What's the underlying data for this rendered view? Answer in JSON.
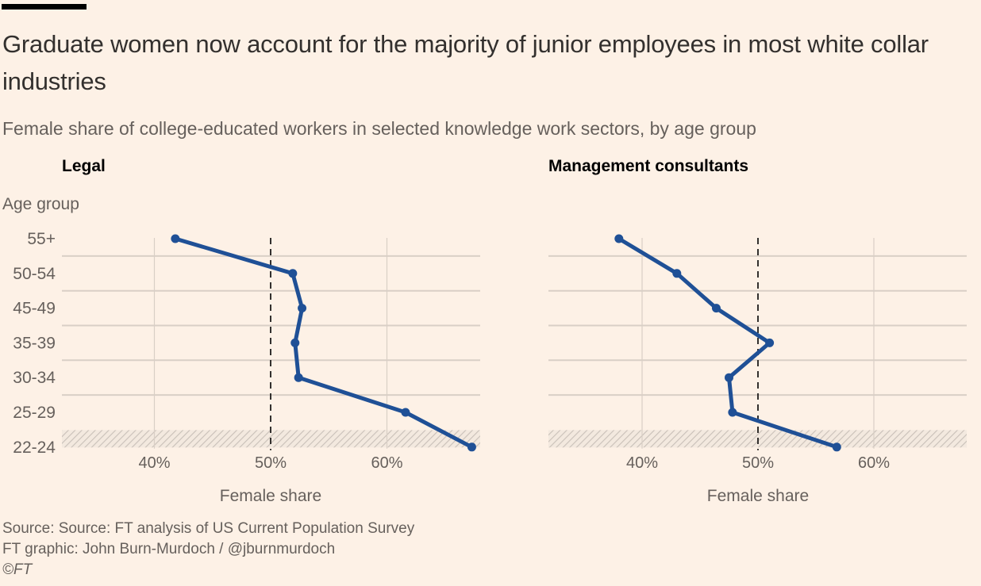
{
  "header": {
    "title": "Graduate women now account for the majority of junior employees in most white collar industries",
    "subtitle": "Female share of college-educated workers in selected knowledge work sectors, by age group"
  },
  "y_axis_title": "Age group",
  "footer": {
    "source": "Source: Source: FT analysis of US Current Population Survey",
    "credit": "FT graphic: John Burn-Murdoch / @jburnmurdoch",
    "copyright": "©FT"
  },
  "colors": {
    "background": "#fdf1e6",
    "line": "#1f5096",
    "grid": "#d9cfc6",
    "reference": "#33302e"
  },
  "chart_data": [
    {
      "type": "line",
      "title": "Legal",
      "xlabel": "Female share",
      "ylabel": "Age group",
      "categories": [
        "55+",
        "50-54",
        "45-49",
        "35-39",
        "30-34",
        "25-29",
        "22-24"
      ],
      "values": [
        41.8,
        51.9,
        52.7,
        52.1,
        52.4,
        61.6,
        67.3
      ],
      "xlim": [
        32,
        68
      ],
      "xticks": [
        40,
        50,
        60
      ],
      "xtick_labels": [
        "40%",
        "50%",
        "60%"
      ],
      "reference_line": 50,
      "highlighted_category": "22-24",
      "grid": true
    },
    {
      "type": "line",
      "title": "Management consultants",
      "xlabel": "Female share",
      "ylabel": "",
      "categories": [
        "55+",
        "50-54",
        "45-49",
        "35-39",
        "30-34",
        "25-29",
        "22-24"
      ],
      "values": [
        38.0,
        43.0,
        46.4,
        51.0,
        47.5,
        47.8,
        56.8
      ],
      "xlim": [
        32.5,
        68.5
      ],
      "xticks": [
        40,
        50,
        60
      ],
      "xtick_labels": [
        "40%",
        "50%",
        "60%"
      ],
      "reference_line": 50,
      "highlighted_category": "22-24",
      "grid": true
    }
  ]
}
